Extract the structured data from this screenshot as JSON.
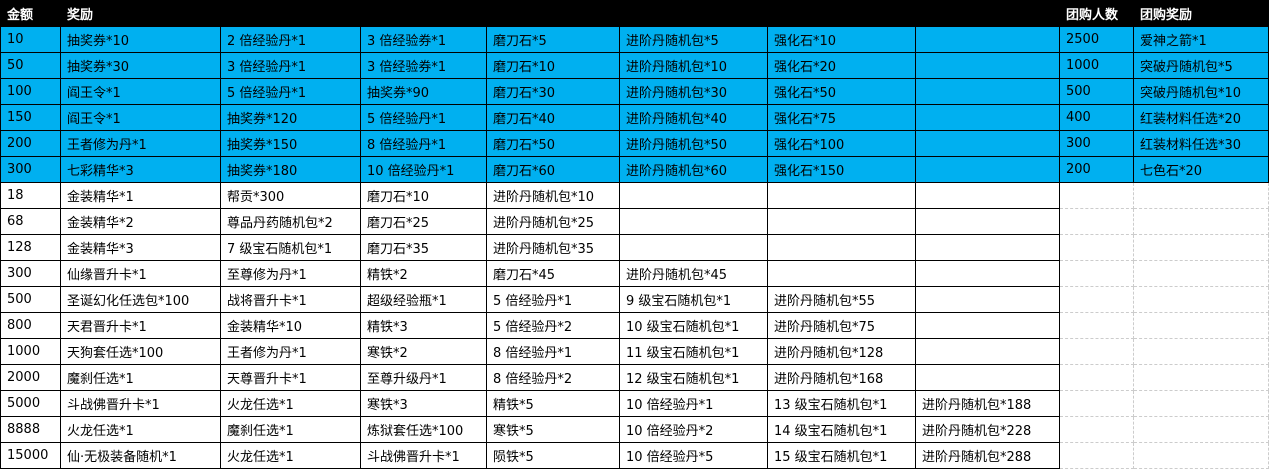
{
  "colors": {
    "highlight": "#00B0F0",
    "header_bg": "#000000"
  },
  "header": {
    "amount": "金额",
    "reward": "奖励",
    "group_count": "团购人数",
    "group_reward": "团购奖励"
  },
  "rows": [
    [
      "10",
      "抽奖券*10",
      "2 倍经验丹*1",
      "3 倍经验券*1",
      "磨刀石*5",
      "进阶丹随机包*5",
      "强化石*10",
      ""
    ],
    [
      "50",
      "抽奖券*30",
      "3 倍经验丹*1",
      "3 倍经验券*1",
      "磨刀石*10",
      "进阶丹随机包*10",
      "强化石*20",
      ""
    ],
    [
      "100",
      "阎王令*1",
      "5 倍经验丹*1",
      "抽奖券*90",
      "磨刀石*30",
      "进阶丹随机包*30",
      "强化石*50",
      ""
    ],
    [
      "150",
      "阎王令*1",
      "抽奖券*120",
      "5 倍经验丹*1",
      "磨刀石*40",
      "进阶丹随机包*40",
      "强化石*75",
      ""
    ],
    [
      "200",
      "王者修为丹*1",
      "抽奖券*150",
      "8 倍经验丹*1",
      "磨刀石*50",
      "进阶丹随机包*50",
      "强化石*100",
      ""
    ],
    [
      "300",
      "七彩精华*3",
      "抽奖券*180",
      "10 倍经验丹*1",
      "磨刀石*60",
      "进阶丹随机包*60",
      "强化石*150",
      ""
    ],
    [
      "18",
      "金装精华*1",
      "帮贡*300",
      "磨刀石*10",
      "进阶丹随机包*10",
      "",
      "",
      ""
    ],
    [
      "68",
      "金装精华*2",
      "尊品丹药随机包*2",
      "磨刀石*25",
      "进阶丹随机包*25",
      "",
      "",
      ""
    ],
    [
      "128",
      "金装精华*3",
      "7 级宝石随机包*1",
      "磨刀石*35",
      "进阶丹随机包*35",
      "",
      "",
      ""
    ],
    [
      "300",
      "仙缘晋升卡*1",
      "至尊修为丹*1",
      "精铁*2",
      "磨刀石*45",
      "进阶丹随机包*45",
      "",
      ""
    ],
    [
      "500",
      "圣诞幻化任选包*100",
      "战将晋升卡*1",
      "超级经验瓶*1",
      "5 倍经验丹*1",
      "9 级宝石随机包*1",
      "进阶丹随机包*55",
      ""
    ],
    [
      "800",
      "天君晋升卡*1",
      "金装精华*10",
      "精铁*3",
      "5 倍经验丹*2",
      "10 级宝石随机包*1",
      "进阶丹随机包*75",
      ""
    ],
    [
      "1000",
      "天狗套任选*100",
      "王者修为丹*1",
      "寒铁*2",
      "8 倍经验丹*1",
      "11 级宝石随机包*1",
      "进阶丹随机包*128",
      ""
    ],
    [
      "2000",
      "魔刹任选*1",
      "天尊晋升卡*1",
      "至尊升级丹*1",
      "8 倍经验丹*2",
      "12 级宝石随机包*1",
      "进阶丹随机包*168",
      ""
    ],
    [
      "5000",
      "斗战佛晋升卡*1",
      "火龙任选*1",
      "寒铁*3",
      "精铁*5",
      "10 倍经验丹*1",
      "13 级宝石随机包*1",
      "进阶丹随机包*188"
    ],
    [
      "8888",
      "火龙任选*1",
      "魔刹任选*1",
      "炼狱套任选*100",
      "寒铁*5",
      "10 倍经验丹*2",
      "14 级宝石随机包*1",
      "进阶丹随机包*228"
    ],
    [
      "15000",
      "仙·无极装备随机*1",
      "火龙任选*1",
      "斗战佛晋升卡*1",
      "陨铁*5",
      "10 倍经验丹*5",
      "15 级宝石随机包*1",
      "进阶丹随机包*288"
    ]
  ],
  "highlighted_rows": 6,
  "group_rows": [
    [
      "2500",
      "爱神之箭*1"
    ],
    [
      "1000",
      "突破丹随机包*5"
    ],
    [
      "500",
      "突破丹随机包*10"
    ],
    [
      "400",
      "红装材料任选*20"
    ],
    [
      "300",
      "红装材料任选*30"
    ],
    [
      "200",
      "七色石*20"
    ]
  ]
}
